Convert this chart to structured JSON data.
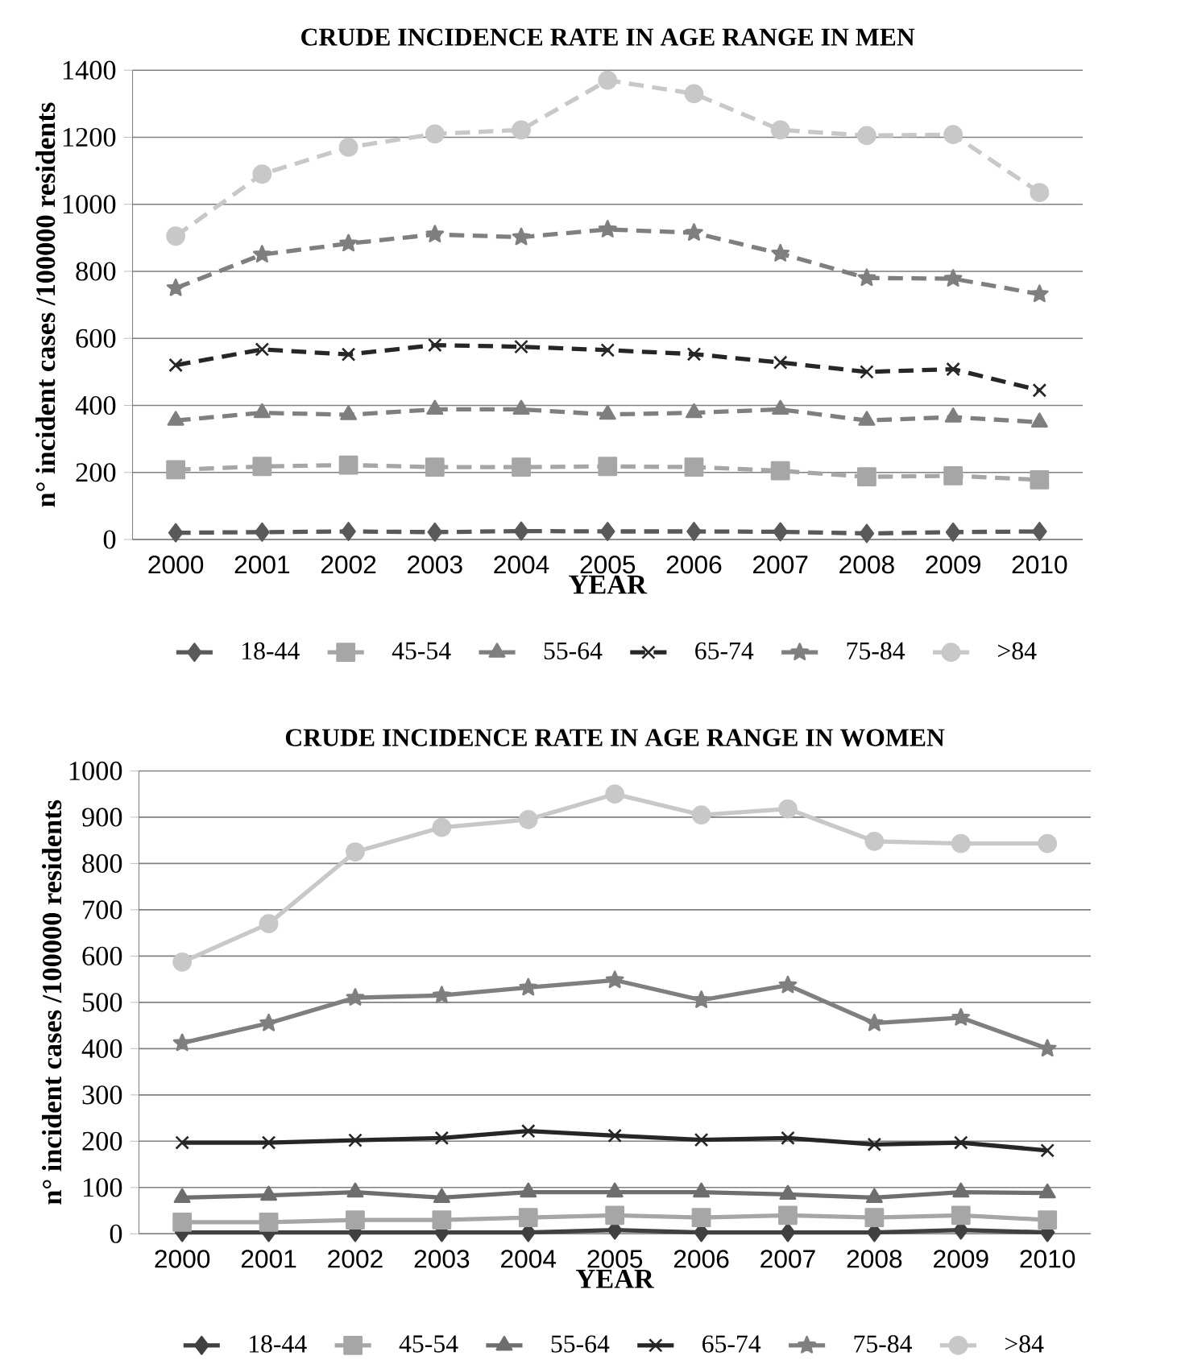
{
  "chart_data": [
    {
      "type": "line",
      "title": "CRUDE INCIDENCE RATE IN AGE RANGE IN MEN",
      "xlabel": "YEAR",
      "ylabel": "n° incident cases /100000 residents",
      "categories": [
        "2000",
        "2001",
        "2002",
        "2003",
        "2004",
        "2005",
        "2006",
        "2007",
        "2008",
        "2009",
        "2010"
      ],
      "ylim": [
        0,
        1400
      ],
      "yticks": [
        0,
        200,
        400,
        600,
        800,
        1000,
        1200,
        1400
      ],
      "grid": "y",
      "legend": "bottom",
      "line_style": "dashed",
      "series": [
        {
          "name": "18-44",
          "color": "#595959",
          "marker": "diamond",
          "values": [
            20,
            22,
            24,
            22,
            25,
            24,
            24,
            23,
            18,
            22,
            24
          ]
        },
        {
          "name": "45-54",
          "color": "#a6a6a6",
          "marker": "square",
          "values": [
            208,
            218,
            222,
            216,
            216,
            218,
            216,
            205,
            187,
            190,
            178
          ]
        },
        {
          "name": "55-64",
          "color": "#7f7f7f",
          "marker": "triangle",
          "values": [
            355,
            378,
            372,
            388,
            388,
            373,
            378,
            388,
            355,
            365,
            350
          ]
        },
        {
          "name": "65-74",
          "color": "#262626",
          "marker": "cross",
          "values": [
            520,
            567,
            552,
            580,
            575,
            565,
            553,
            528,
            500,
            508,
            445
          ]
        },
        {
          "name": "75-84",
          "color": "#7f7f7f",
          "marker": "star",
          "values": [
            750,
            850,
            883,
            910,
            902,
            925,
            915,
            853,
            780,
            778,
            732
          ]
        },
        {
          "name": ">84",
          "color": "#c8c8c8",
          "marker": "circle",
          "values": [
            905,
            1090,
            1170,
            1210,
            1222,
            1370,
            1330,
            1222,
            1205,
            1208,
            1035
          ]
        }
      ]
    },
    {
      "type": "line",
      "title": "CRUDE INCIDENCE RATE IN AGE RANGE IN WOMEN",
      "xlabel": "YEAR",
      "ylabel": "n° incident cases /100000 residents",
      "categories": [
        "2000",
        "2001",
        "2002",
        "2003",
        "2004",
        "2005",
        "2006",
        "2007",
        "2008",
        "2009",
        "2010"
      ],
      "ylim": [
        0,
        1000
      ],
      "yticks": [
        0,
        100,
        200,
        300,
        400,
        500,
        600,
        700,
        800,
        900,
        1000
      ],
      "grid": "y",
      "legend": "bottom",
      "line_style": "solid",
      "series": [
        {
          "name": "18-44",
          "color": "#404040",
          "marker": "diamond",
          "values": [
            3,
            3,
            3,
            3,
            3,
            8,
            3,
            3,
            3,
            8,
            3
          ]
        },
        {
          "name": "45-54",
          "color": "#a6a6a6",
          "marker": "square",
          "values": [
            25,
            25,
            30,
            30,
            35,
            40,
            35,
            40,
            35,
            40,
            30
          ]
        },
        {
          "name": "55-64",
          "color": "#6e6e6e",
          "marker": "triangle",
          "values": [
            78,
            83,
            90,
            78,
            90,
            90,
            90,
            85,
            78,
            90,
            88
          ]
        },
        {
          "name": "65-74",
          "color": "#262626",
          "marker": "cross",
          "values": [
            197,
            197,
            202,
            207,
            222,
            212,
            203,
            207,
            193,
            197,
            180
          ]
        },
        {
          "name": "75-84",
          "color": "#7f7f7f",
          "marker": "star",
          "values": [
            412,
            455,
            510,
            515,
            532,
            548,
            505,
            537,
            455,
            467,
            400
          ]
        },
        {
          "name": ">84",
          "color": "#c8c8c8",
          "marker": "circle",
          "values": [
            587,
            670,
            825,
            878,
            895,
            950,
            905,
            918,
            848,
            843,
            843
          ]
        }
      ]
    }
  ]
}
